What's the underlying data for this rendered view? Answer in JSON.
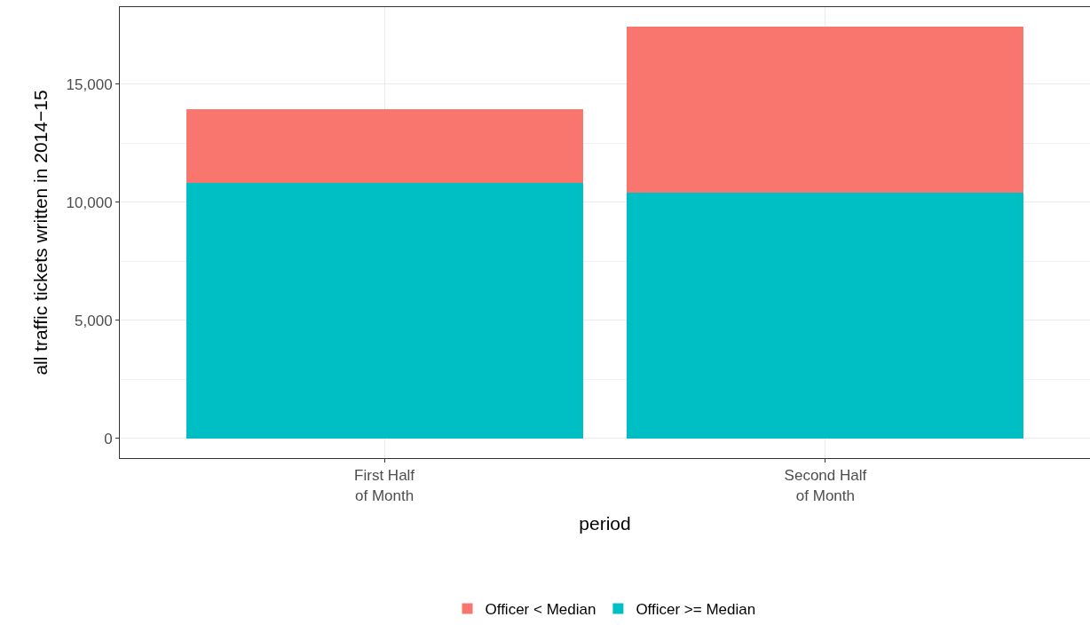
{
  "chart_data": {
    "type": "bar",
    "stacked": true,
    "xlabel": "period",
    "ylabel": "all traffic tickets written in 2014−15",
    "categories": [
      "First Half\nof Month",
      "Second Half\nof Month"
    ],
    "series": [
      {
        "name": "Officer >= Median",
        "color": "#00bfc4",
        "values": [
          10830,
          10410
        ]
      },
      {
        "name": "Officer < Median",
        "color": "#f8766d",
        "values": [
          3120,
          7030
        ]
      }
    ],
    "ylim": [
      -830,
      18270
    ],
    "yticks": [
      {
        "value": 0,
        "label": "0"
      },
      {
        "value": 5000,
        "label": "5,000"
      },
      {
        "value": 10000,
        "label": "10,000"
      },
      {
        "value": 15000,
        "label": "15,000"
      }
    ],
    "grid": true,
    "legend": "bottom"
  }
}
